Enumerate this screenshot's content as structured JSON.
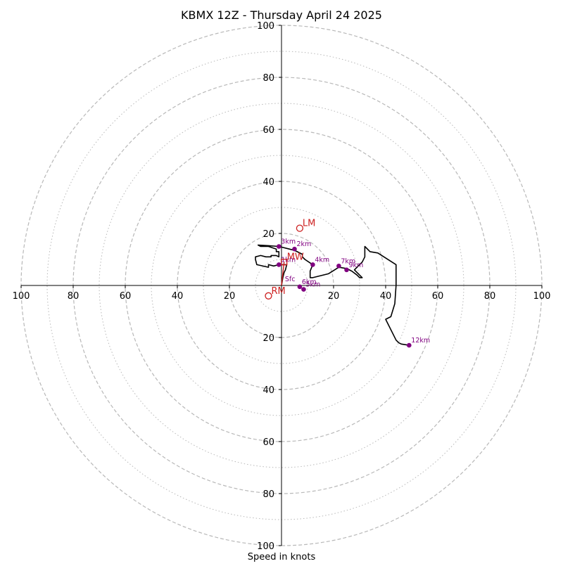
{
  "chart_data": {
    "type": "line",
    "title": "KBMX 12Z - Thursday April 24 2025",
    "xlabel": "Speed in knots",
    "ylabel": "",
    "xlim": [
      -100,
      100
    ],
    "ylim": [
      -100,
      100
    ],
    "rings": {
      "major": [
        20,
        40,
        60,
        80,
        100
      ],
      "minor": [
        10,
        30,
        50,
        70,
        90
      ]
    },
    "x_tick_labels": [
      "100",
      "80",
      "60",
      "40",
      "20",
      "20",
      "40",
      "60",
      "80",
      "100"
    ],
    "y_tick_labels": [
      "100",
      "80",
      "60",
      "40",
      "20",
      "20",
      "40",
      "60",
      "80",
      "100"
    ],
    "x_tick_values": [
      -100,
      -80,
      -60,
      -40,
      -20,
      20,
      40,
      60,
      80,
      100
    ],
    "y_tick_values": [
      100,
      80,
      60,
      40,
      20,
      -20,
      -40,
      -60,
      -80,
      -100
    ],
    "grid": true,
    "colors": {
      "hodograph": "#000000",
      "height_markers": "#800080",
      "storm_motion": "#cc1f1f",
      "grid": "#b8b8b8"
    },
    "series": [
      {
        "x": [
          0,
          0.5,
          1,
          1.5,
          2,
          -1,
          -3,
          -5,
          -5,
          -5,
          -9.5,
          -10,
          -10,
          -8,
          -6,
          -4,
          -4,
          -2,
          -1,
          -1,
          -1,
          -2,
          -2,
          -5,
          -8,
          -9,
          -5,
          -1,
          3,
          5,
          6,
          8,
          8,
          9,
          12,
          12,
          11,
          11,
          12,
          18,
          22,
          25,
          27,
          29,
          30,
          31,
          28,
          31,
          32,
          32,
          34,
          37,
          44,
          44,
          44,
          43.5,
          42,
          40,
          44,
          45,
          46,
          49
        ],
        "y": [
          0,
          3,
          5,
          6,
          8,
          8,
          7.5,
          8,
          8,
          7,
          8,
          10,
          11,
          11.5,
          11,
          11,
          11.5,
          11.5,
          11,
          12,
          13,
          13,
          14,
          15,
          15,
          15.5,
          15.3,
          15,
          14,
          13.5,
          13,
          12,
          11,
          10,
          8,
          8,
          5.5,
          3,
          3,
          4.5,
          7,
          6.5,
          5.5,
          4,
          3,
          3,
          6,
          9,
          11,
          15,
          13,
          12.5,
          8,
          2,
          0,
          -7,
          -12,
          -13,
          -21,
          -22,
          -22.5,
          -23
        ]
      }
    ],
    "height_markers": [
      {
        "label": "Sfc",
        "x": 0.5,
        "y": 0.5
      },
      {
        "label": "1km",
        "x": -1,
        "y": 8
      },
      {
        "label": "2km",
        "x": 5,
        "y": 14
      },
      {
        "label": "3km",
        "x": -1,
        "y": 15
      },
      {
        "label": "4km",
        "x": 12,
        "y": 8
      },
      {
        "label": "6km",
        "x": 7,
        "y": -0.5
      },
      {
        "label": "5km",
        "x": 8.5,
        "y": -1.5
      },
      {
        "label": "7km",
        "x": 22,
        "y": 7.5
      },
      {
        "label": "9km",
        "x": 25,
        "y": 6
      },
      {
        "label": "12km",
        "x": 49,
        "y": -23
      }
    ],
    "storm_motion": [
      {
        "label": "LM",
        "x": 7,
        "y": 22
      },
      {
        "label": "MW",
        "x": 1,
        "y": 9
      },
      {
        "label": "RM",
        "x": -5,
        "y": -4
      }
    ]
  }
}
